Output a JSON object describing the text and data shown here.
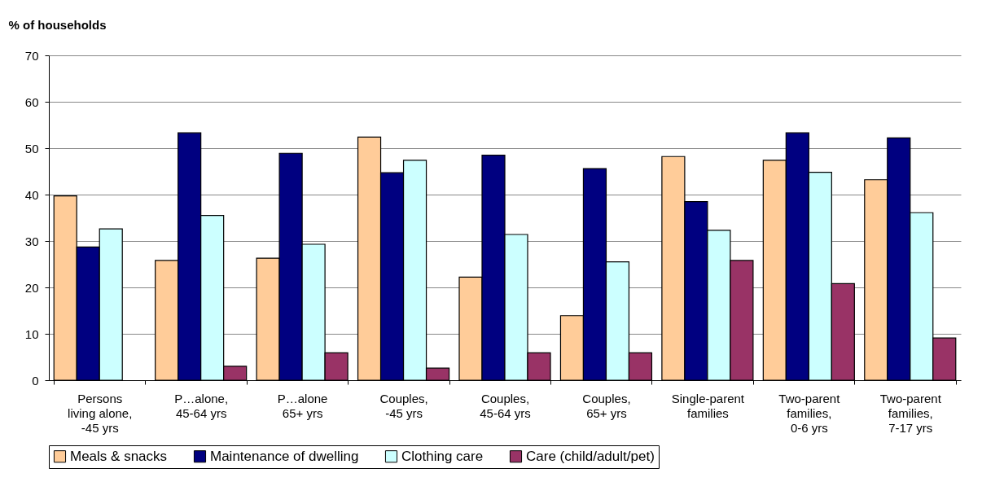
{
  "chart_data": {
    "type": "bar",
    "ylabel": "% of households",
    "categories": [
      "Persons\nliving alone,\n-45 yrs",
      "P…alone,\n45-64 yrs",
      "P…alone\n65+ yrs",
      "Couples,\n-45 yrs",
      "Couples,\n45-64 yrs",
      "Couples,\n65+ yrs",
      "Single-parent\nfamilies",
      "Two-parent\nfamilies,\n0-6 yrs",
      "Two-parent\nfamilies,\n7-17 yrs"
    ],
    "series": [
      {
        "name": "Meals & snacks",
        "color": "#ffcc99",
        "values": [
          39.7,
          25.8,
          26.3,
          52.4,
          22.2,
          13.9,
          48.2,
          47.4,
          43.2
        ]
      },
      {
        "name": "Maintenance of dwelling",
        "color": "#000080",
        "values": [
          28.7,
          53.3,
          48.9,
          44.7,
          48.5,
          45.6,
          38.5,
          53.3,
          52.2
        ]
      },
      {
        "name": "Clothing care",
        "color": "#ccffff",
        "values": [
          32.6,
          35.5,
          29.3,
          47.4,
          31.4,
          25.5,
          32.3,
          44.8,
          36.1
        ]
      },
      {
        "name": "Care (child/adult/pet)",
        "color": "#993366",
        "values": [
          null,
          3.0,
          5.9,
          2.6,
          5.9,
          5.9,
          25.8,
          20.8,
          9.1
        ]
      }
    ],
    "ylim": [
      0,
      70
    ],
    "yticks": [
      0,
      10,
      20,
      30,
      40,
      50,
      60,
      70
    ],
    "grid": "y",
    "legend": "bottom"
  }
}
